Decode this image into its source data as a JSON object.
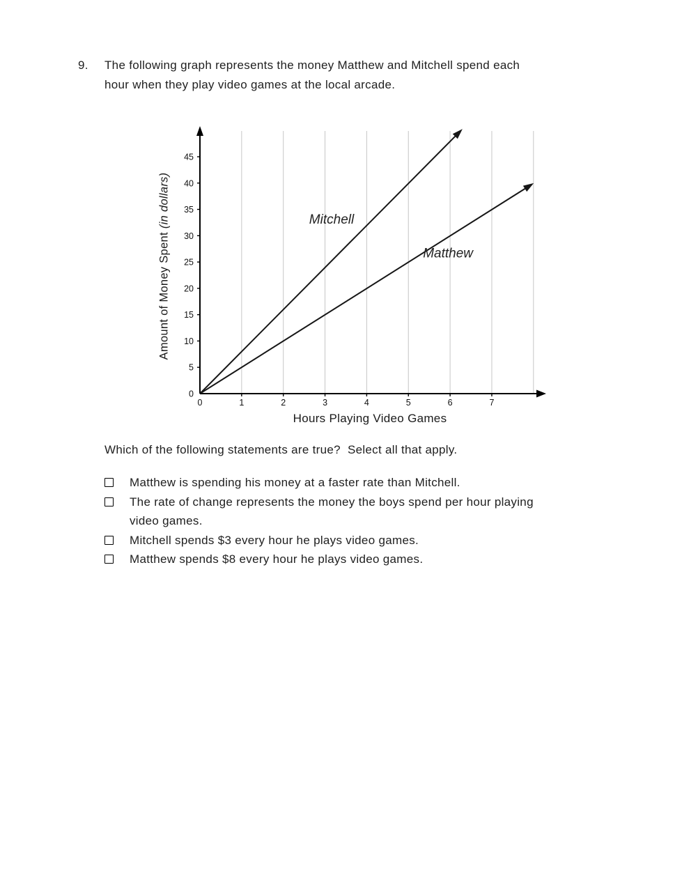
{
  "question": {
    "number": "9.",
    "text": "The following graph represents the money Matthew and Mitchell spend each hour when they play video games at the local arcade."
  },
  "chart_data": {
    "type": "line",
    "title": "",
    "xlabel": "Hours Playing Video Games",
    "ylabel": "Amount of Money Spent",
    "ylabel_note": "(in dollars)",
    "xlim": [
      0,
      8
    ],
    "ylim": [
      0,
      50
    ],
    "x_ticks": [
      0,
      1,
      2,
      3,
      4,
      5,
      6,
      7
    ],
    "y_ticks": [
      0,
      5,
      10,
      15,
      20,
      25,
      30,
      35,
      40,
      45
    ],
    "grid": "vertical-only",
    "legend_position": "inline-labels-on-lines",
    "series": [
      {
        "name": "Mitchell",
        "slope_dollars_per_hour": 8,
        "points": [
          [
            0,
            0
          ],
          [
            6.25,
            49.9
          ]
        ],
        "label_pos": [
          2.62,
          32.3
        ]
      },
      {
        "name": "Matthew",
        "slope_dollars_per_hour": 5,
        "points": [
          [
            0,
            0
          ],
          [
            7.95,
            39.7
          ]
        ],
        "label_pos": [
          5.35,
          25.9
        ]
      }
    ]
  },
  "prompt": "Which of the following statements are true?  Select all that apply.",
  "choices": [
    {
      "label": "Matthew is spending his money at a faster rate than Mitchell.",
      "checked": false
    },
    {
      "label": "The rate of change represents the money the boys spend per hour playing video games.",
      "checked": false
    },
    {
      "label": "Mitchell spends $3 every hour he plays video games.",
      "checked": false
    },
    {
      "label": "Matthew spends $8 every hour he plays video games.",
      "checked": false
    }
  ]
}
